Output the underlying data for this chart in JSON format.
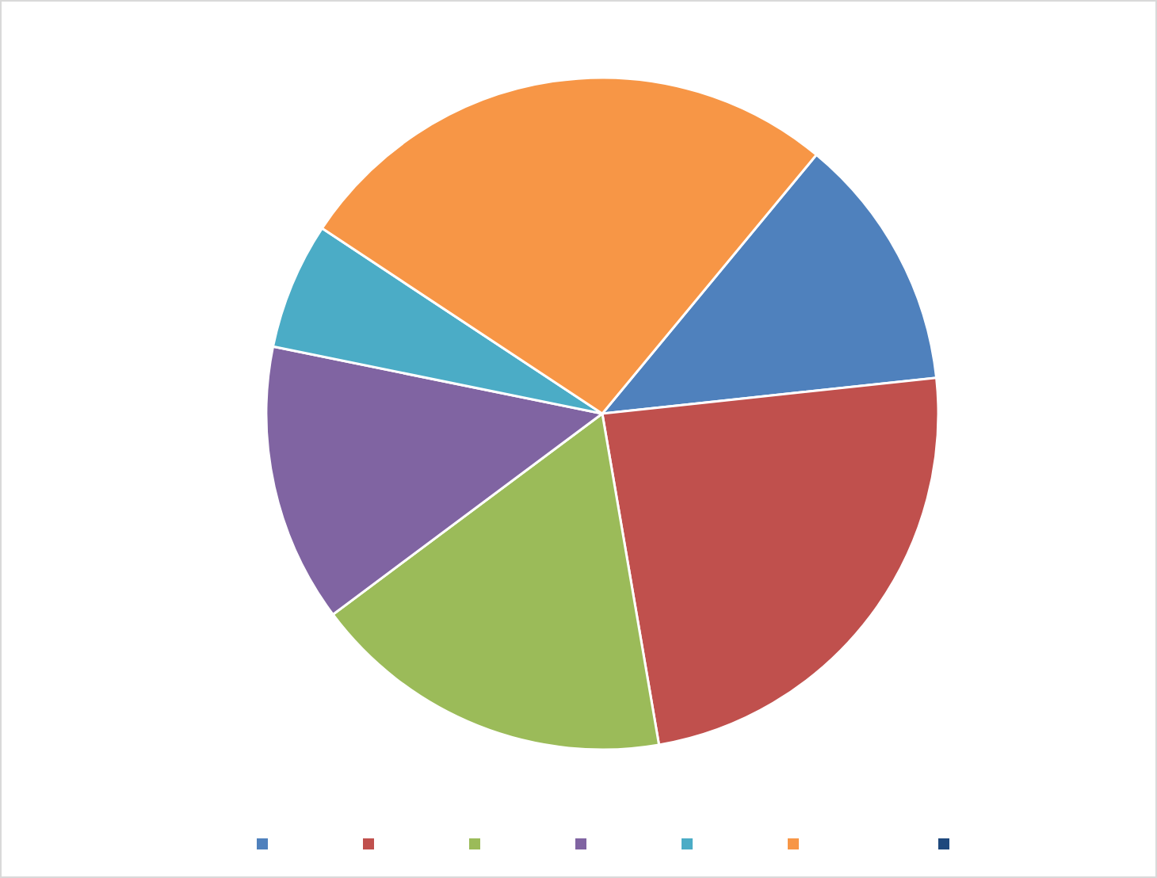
{
  "chart_data": {
    "type": "pie",
    "categories": [
      null,
      null,
      null,
      null,
      null,
      null,
      null
    ],
    "values": [
      12.3,
      24.0,
      17.5,
      13.4,
      6.1,
      26.7,
      0
    ],
    "colors": [
      "#4f81bd",
      "#c0504d",
      "#9bbb59",
      "#8064a2",
      "#4bacc6",
      "#f79646",
      "#1f497d"
    ]
  }
}
